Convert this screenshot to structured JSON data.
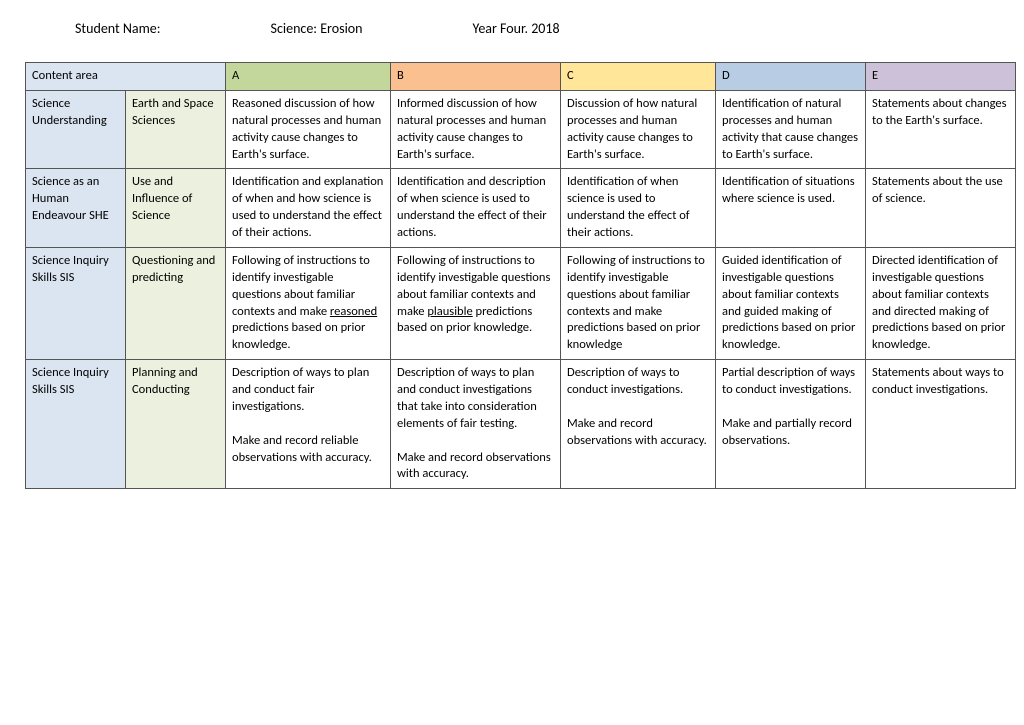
{
  "header": {
    "student_name_label": "Student Name:",
    "subject": "Science: Erosion",
    "year": "Year Four. 2018"
  },
  "columns": {
    "content_area": "Content area",
    "a": "A",
    "b": "B",
    "c": "C",
    "d": "D",
    "e": "E"
  },
  "rows": [
    {
      "strand": "Science Understanding",
      "sub": "Earth and Space Sciences",
      "a": "Reasoned discussion of how natural processes and human activity cause changes to Earth's surface.",
      "b": "Informed discussion of how natural processes and human activity cause changes to Earth's surface.",
      "c": "Discussion of how natural processes and human activity cause changes to Earth's surface.",
      "d": "Identification of natural processes and human activity that cause changes to Earth's surface.",
      "e": "Statements about changes to the Earth's surface."
    },
    {
      "strand": "Science as an Human Endeavour SHE",
      "sub": "Use and Influence of Science",
      "a": "Identification and explanation of when and how science is used to understand the effect of their actions.",
      "b": "Identification and description of when science is used to understand the effect of their actions.",
      "c": "Identification of when science is used to understand the effect of their actions.",
      "d": "Identification of situations where science is used.",
      "e": "Statements about the use of science."
    },
    {
      "strand": "Science Inquiry Skills SIS",
      "sub": "Questioning and predicting",
      "a_pre": "Following of instructions to identify investigable questions about familiar contexts and make ",
      "a_u": "reasoned ",
      "a_post": "predictions based on prior knowledge.",
      "b_pre": "Following of instructions to identify investigable questions about familiar contexts and make ",
      "b_u": "plausible",
      "b_post": " predictions based on prior knowledge.",
      "c": "Following of instructions to identify investigable questions about familiar contexts and make predictions based on prior knowledge",
      "d": "Guided identification of investigable questions about familiar contexts and guided making of predictions based on prior knowledge.",
      "e": "Directed identification of investigable questions about familiar contexts and directed making of predictions based on prior knowledge."
    },
    {
      "strand": "Science Inquiry Skills SIS",
      "sub": "Planning and Conducting",
      "a1": "Description of ways to plan and conduct fair investigations.",
      "a2": "Make and record reliable observations with accuracy.",
      "b1": "Description of ways to plan and conduct investigations that take into consideration elements of fair testing.",
      "b2": "Make and record observations with accuracy.",
      "c1": "Description of ways to conduct investigations.",
      "c2": "Make and record observations with accuracy.",
      "d1": "Partial description of ways to conduct investigations.",
      "d2": "Make and partially record observations.",
      "e": "Statements about ways to conduct investigations."
    }
  ]
}
